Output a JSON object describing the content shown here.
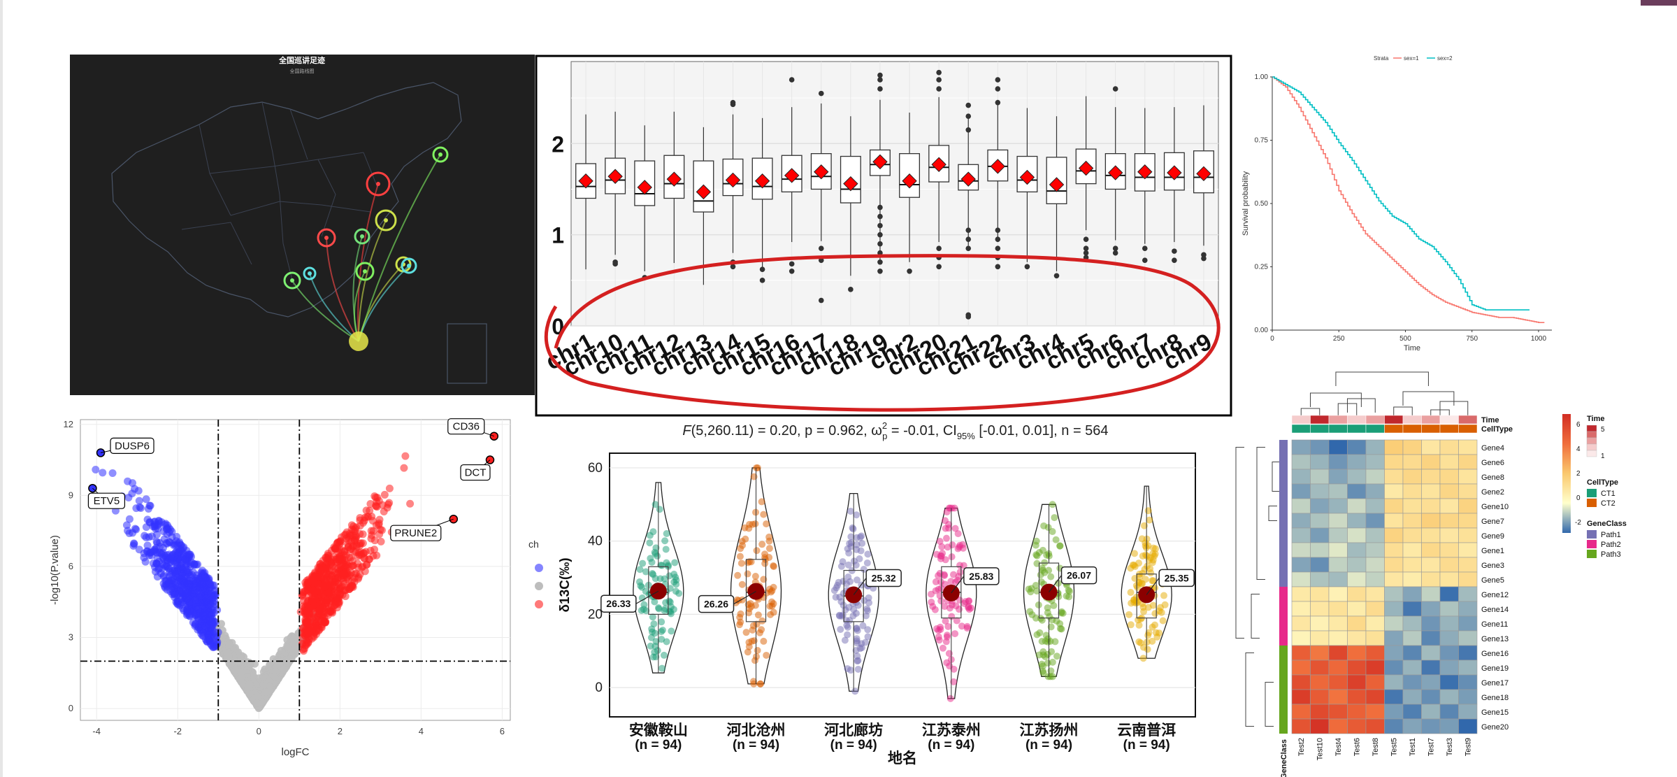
{
  "page": {
    "accent": "#6b3d5c"
  },
  "map": {
    "title": "全国巡讲足迹",
    "subtitle": "全国路线图",
    "bg": "#1f1f1f",
    "chart_data": {
      "type": "other",
      "nodes": [
        "circle markers with routes converging to one node"
      ]
    }
  },
  "boxplot": {
    "chart_data": {
      "type": "boxplot",
      "categories": [
        "chr1",
        "chr10",
        "chr11",
        "chr12",
        "chr13",
        "chr14",
        "chr15",
        "chr16",
        "chr17",
        "chr18",
        "chr19",
        "chr2",
        "chr20",
        "chr21",
        "chr22",
        "chr3",
        "chr4",
        "chr5",
        "chr6",
        "chr7",
        "chr8",
        "chr9"
      ],
      "yticks": [
        "0",
        "1",
        "2"
      ],
      "ylim": [
        0,
        2.9
      ],
      "q1": [
        1.4,
        1.45,
        1.32,
        1.4,
        1.25,
        1.43,
        1.39,
        1.47,
        1.5,
        1.35,
        1.65,
        1.41,
        1.58,
        1.49,
        1.59,
        1.47,
        1.34,
        1.56,
        1.5,
        1.48,
        1.49,
        1.46
      ],
      "median": [
        1.53,
        1.6,
        1.45,
        1.56,
        1.37,
        1.56,
        1.53,
        1.61,
        1.64,
        1.5,
        1.77,
        1.55,
        1.74,
        1.59,
        1.75,
        1.6,
        1.48,
        1.7,
        1.65,
        1.63,
        1.63,
        1.63
      ],
      "q3": [
        1.78,
        1.84,
        1.81,
        1.87,
        1.81,
        1.83,
        1.84,
        1.87,
        1.89,
        1.86,
        1.93,
        1.89,
        1.98,
        1.77,
        1.93,
        1.86,
        1.85,
        1.94,
        1.89,
        1.89,
        1.9,
        1.92
      ],
      "whisker_low": [
        0.62,
        0.78,
        0.6,
        0.69,
        0.45,
        0.8,
        0.64,
        0.92,
        0.93,
        0.55,
        0.72,
        0.7,
        0.92,
        0.88,
        0.92,
        0.7,
        0.6,
        1.05,
        0.94,
        0.9,
        0.92,
        0.88
      ],
      "whisker_high": [
        2.32,
        2.35,
        2.2,
        2.35,
        2.18,
        2.32,
        2.28,
        2.4,
        2.44,
        2.3,
        2.48,
        2.34,
        2.51,
        2.3,
        2.48,
        2.39,
        2.3,
        2.52,
        2.4,
        2.39,
        2.4,
        2.42
      ],
      "mean": [
        1.59,
        1.64,
        1.52,
        1.61,
        1.47,
        1.6,
        1.59,
        1.65,
        1.69,
        1.56,
        1.8,
        1.59,
        1.77,
        1.61,
        1.75,
        1.63,
        1.55,
        1.73,
        1.68,
        1.69,
        1.68,
        1.67
      ],
      "outliers": [
        [],
        [
          0.7,
          0.68
        ],
        [
          0.53
        ],
        [],
        [],
        [
          2.43,
          2.45,
          0.7,
          0.65
        ],
        [
          0.62,
          0.5
        ],
        [
          2.7,
          0.68,
          0.6
        ],
        [
          2.55,
          0.85,
          0.72,
          0.28
        ],
        [
          0.4
        ],
        [
          2.75,
          2.7,
          2.6,
          1.3,
          1.2,
          1.1,
          1.0,
          0.9,
          0.8,
          0.7,
          0.6
        ],
        [
          0.6
        ],
        [
          2.78,
          2.7,
          2.6,
          0.85,
          0.75,
          0.65
        ],
        [
          2.42,
          2.3,
          2.15,
          1.05,
          0.95,
          0.85,
          0.12,
          0.1
        ],
        [
          2.7,
          2.6,
          2.45,
          1.05,
          0.95,
          0.85,
          0.75,
          0.65
        ],
        [
          0.65
        ],
        [
          0.55
        ],
        [
          0.95,
          0.85,
          0.8,
          0.75
        ],
        [
          2.6,
          0.85,
          0.8
        ],
        [
          0.85,
          0.72
        ],
        [
          0.82,
          0.72
        ],
        [
          0.78,
          0.74
        ]
      ],
      "mean_color": "#ff0000",
      "annotation_color": "#d42020"
    }
  },
  "survival": {
    "chart_data": {
      "type": "line",
      "legend_title": "Strata",
      "series": [
        {
          "name": "sex=1",
          "color": "#f8766d",
          "x": [
            0,
            50,
            100,
            150,
            200,
            250,
            300,
            350,
            400,
            450,
            500,
            550,
            600,
            650,
            700,
            750,
            800,
            850,
            900,
            950,
            1000,
            1022
          ],
          "y": [
            1.0,
            0.96,
            0.88,
            0.78,
            0.68,
            0.55,
            0.46,
            0.38,
            0.33,
            0.28,
            0.23,
            0.18,
            0.14,
            0.11,
            0.09,
            0.07,
            0.06,
            0.05,
            0.05,
            0.04,
            0.03,
            0.03
          ]
        },
        {
          "name": "sex=2",
          "color": "#00bfc4",
          "x": [
            0,
            50,
            100,
            150,
            200,
            250,
            300,
            350,
            400,
            450,
            500,
            550,
            600,
            650,
            700,
            750,
            800,
            850,
            900,
            950,
            966
          ],
          "y": [
            1.0,
            0.97,
            0.94,
            0.88,
            0.82,
            0.74,
            0.67,
            0.59,
            0.51,
            0.45,
            0.42,
            0.36,
            0.33,
            0.27,
            0.2,
            0.1,
            0.08,
            0.08,
            0.08,
            0.08,
            0.08
          ]
        }
      ],
      "ylabel": "Survival probability",
      "xlabel": "Time",
      "xticks": [
        "0",
        "250",
        "500",
        "750",
        "1000"
      ],
      "yticks": [
        "0.00",
        "0.25",
        "0.50",
        "0.75",
        "1.00"
      ],
      "xlim": [
        0,
        1050
      ],
      "ylim": [
        0,
        1
      ]
    }
  },
  "volcano": {
    "chart_data": {
      "type": "scatter",
      "xlabel": "logFC",
      "ylabel": "-log10(P.value)",
      "xticks": [
        "-4",
        "-2",
        "0",
        "2",
        "4",
        "6"
      ],
      "yticks": [
        "0",
        "3",
        "6",
        "9",
        "12"
      ],
      "xlim": [
        -4.4,
        6.2
      ],
      "ylim": [
        -0.5,
        12.2
      ],
      "thresholds": {
        "x": [
          -1,
          1
        ],
        "y": 2
      },
      "colors": {
        "down": "#3333ff",
        "ns": "#bdbdbd",
        "up": "#ff2020"
      },
      "labels": [
        {
          "text": "DUSP6",
          "x": -3.9,
          "y": 10.8
        },
        {
          "text": "ETV5",
          "x": -4.1,
          "y": 9.3
        },
        {
          "text": "CD36",
          "x": 5.8,
          "y": 11.5
        },
        {
          "text": "DCT",
          "x": 5.7,
          "y": 10.5
        },
        {
          "text": "PRUNE2",
          "x": 4.8,
          "y": 8.0
        }
      ],
      "legend_fragment": "ch"
    }
  },
  "violin": {
    "chart_data": {
      "type": "violin",
      "stats_prefix": "F",
      "stats_text": "(5,260.11) = 0.20, p = 0.962, ω",
      "stats_sup": "2",
      "stats_sub": "p",
      "stats_mid": " = -0.01, CI",
      "stats_ci_sub": "95%",
      "stats_tail": " [-0.01, 0.01], n = 564",
      "ylabel": "δ13C(‰)",
      "xlabel": "地名",
      "yticks": [
        "0",
        "20",
        "40",
        "60"
      ],
      "ylim": [
        -8,
        64
      ],
      "groups": [
        {
          "name": "安徽鞍山",
          "n": "(n = 94)",
          "mean": 26.33,
          "label": "26.33",
          "color": "#1b9e77",
          "min": 4,
          "max": 56,
          "q1": 20,
          "median": 26,
          "q3": 33
        },
        {
          "name": "河北沧州",
          "n": "(n = 94)",
          "mean": 26.26,
          "label": "26.26",
          "color": "#d95f02",
          "min": 1,
          "max": 60,
          "q1": 18,
          "median": 26,
          "q3": 35
        },
        {
          "name": "河北廊坊",
          "n": "(n = 94)",
          "mean": 25.32,
          "label": "25.32",
          "color": "#7570b3",
          "min": -1,
          "max": 53,
          "q1": 18,
          "median": 25,
          "q3": 32
        },
        {
          "name": "江苏泰州",
          "n": "(n = 94)",
          "mean": 25.83,
          "label": "25.83",
          "color": "#e7298a",
          "min": -3,
          "max": 49,
          "q1": 19,
          "median": 26,
          "q3": 33
        },
        {
          "name": "江苏扬州",
          "n": "(n = 94)",
          "mean": 26.07,
          "label": "26.07",
          "color": "#66a61e",
          "min": 3,
          "max": 50,
          "q1": 19,
          "median": 26,
          "q3": 34
        },
        {
          "name": "云南普洱",
          "n": "(n = 94)",
          "mean": 25.35,
          "label": "25.35",
          "color": "#e6ab02",
          "min": 8,
          "max": 55,
          "q1": 19,
          "median": 26,
          "q3": 31
        }
      ],
      "mean_color": "#8b0000"
    }
  },
  "heatmap": {
    "chart_data": {
      "type": "heatmap",
      "columns": [
        "Test2",
        "Test10",
        "Test4",
        "Test6",
        "Test8",
        "Test5",
        "Test1",
        "Test7",
        "Test3",
        "Test9"
      ],
      "rows": [
        "Gene4",
        "Gene6",
        "Gene8",
        "Gene2",
        "Gene10",
        "Gene7",
        "Gene9",
        "Gene1",
        "Gene3",
        "Gene5",
        "Gene12",
        "Gene14",
        "Gene11",
        "Gene13",
        "Gene16",
        "Gene19",
        "Gene17",
        "Gene18",
        "Gene15",
        "Gene20"
      ],
      "values": [
        [
          -1.2,
          -1.4,
          -2.2,
          -1.6,
          -1.0,
          1.8,
          1.6,
          0.9,
          1.2,
          1.0
        ],
        [
          -0.8,
          -1.0,
          -1.4,
          -1.1,
          -0.9,
          1.4,
          1.3,
          1.6,
          1.1,
          1.5
        ],
        [
          -1.0,
          -0.7,
          -1.2,
          -0.9,
          -0.6,
          1.2,
          1.5,
          1.3,
          1.4,
          1.0
        ],
        [
          -1.3,
          -0.9,
          -0.8,
          -1.5,
          -1.1,
          0.8,
          1.2,
          1.0,
          1.5,
          1.2
        ],
        [
          -0.6,
          -1.2,
          -1.0,
          -0.5,
          -0.9,
          1.5,
          1.1,
          1.2,
          0.9,
          1.6
        ],
        [
          -1.1,
          -0.8,
          -0.5,
          -1.0,
          -1.4,
          1.0,
          1.3,
          1.7,
          1.5,
          1.4
        ],
        [
          -0.9,
          -1.3,
          -0.7,
          -0.4,
          -0.8,
          1.6,
          1.2,
          1.1,
          0.9,
          1.1
        ],
        [
          -0.5,
          -0.6,
          -0.3,
          -0.9,
          -0.7,
          1.2,
          0.8,
          1.4,
          1.2,
          0.8
        ],
        [
          -1.2,
          -1.5,
          -0.6,
          -0.8,
          -0.5,
          1.3,
          1.0,
          0.9,
          1.3,
          1.2
        ],
        [
          -0.4,
          -0.8,
          -0.9,
          -0.3,
          -0.6,
          0.9,
          0.7,
          1.1,
          1.0,
          1.3
        ],
        [
          0.8,
          1.0,
          0.5,
          1.2,
          0.9,
          -0.8,
          -1.2,
          -0.6,
          -1.9,
          -0.9
        ],
        [
          0.6,
          0.9,
          1.1,
          0.7,
          1.3,
          -1.0,
          -1.8,
          -1.2,
          -0.8,
          -1.1
        ],
        [
          0.9,
          0.5,
          0.8,
          1.4,
          0.7,
          -0.6,
          -0.9,
          -1.4,
          -1.0,
          -1.3
        ],
        [
          0.4,
          0.8,
          0.6,
          0.9,
          1.1,
          -1.2,
          -0.7,
          -1.6,
          -1.1,
          -0.8
        ],
        [
          4.5,
          3.8,
          5.2,
          4.0,
          4.6,
          -1.2,
          -1.6,
          -0.9,
          -1.4,
          -1.8
        ],
        [
          4.0,
          4.8,
          4.2,
          5.0,
          5.5,
          -1.5,
          -1.0,
          -1.8,
          -1.2,
          -1.0
        ],
        [
          5.0,
          4.2,
          4.6,
          5.4,
          4.4,
          -1.0,
          -1.4,
          -1.2,
          -1.9,
          -1.5
        ],
        [
          5.5,
          4.6,
          3.9,
          4.8,
          5.2,
          -1.8,
          -1.1,
          -1.5,
          -1.0,
          -1.3
        ],
        [
          4.2,
          5.1,
          4.8,
          4.4,
          4.0,
          -1.3,
          -1.7,
          -1.0,
          -1.6,
          -1.1
        ],
        [
          4.8,
          5.8,
          4.1,
          4.6,
          4.9,
          -1.6,
          -1.2,
          -1.4,
          -1.3,
          -2.0
        ]
      ],
      "time": [
        2,
        5,
        3,
        2,
        3,
        5,
        2,
        3,
        1,
        4
      ],
      "celltype": [
        "CT1",
        "CT1",
        "CT1",
        "CT1",
        "CT1",
        "CT2",
        "CT2",
        "CT2",
        "CT2",
        "CT2"
      ],
      "annotation_labels": [
        "Time",
        "CellType"
      ],
      "geneclass_label": "GeneClass",
      "geneclass": [
        "Path1",
        "Path1",
        "Path1",
        "Path1",
        "Path1",
        "Path1",
        "Path1",
        "Path1",
        "Path1",
        "Path1",
        "Path2",
        "Path2",
        "Path2",
        "Path2",
        "Path3",
        "Path3",
        "Path3",
        "Path3",
        "Path3",
        "Path3"
      ],
      "legend": {
        "scale_ticks": [
          "6",
          "4",
          "2",
          "0",
          "-2"
        ],
        "time_title": "Time",
        "time_ticks": [
          "5",
          "1"
        ],
        "celltype_title": "CellType",
        "celltype_items": [
          "CT1",
          "CT2"
        ],
        "celltype_colors": [
          "#1b9e77",
          "#d95f02"
        ],
        "geneclass_title": "GeneClass",
        "geneclass_items": [
          "Path1",
          "Path2",
          "Path3"
        ],
        "geneclass_colors": [
          "#7570b3",
          "#e7298a",
          "#66a61e"
        ]
      }
    }
  }
}
